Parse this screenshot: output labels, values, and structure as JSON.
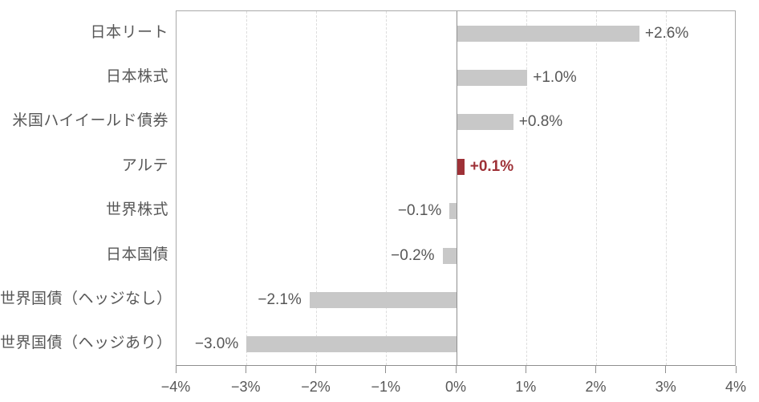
{
  "chart_data": {
    "type": "bar",
    "orientation": "horizontal",
    "title": "",
    "categories": [
      "日本リート",
      "日本株式",
      "米国ハイイールド債券",
      "アルテ",
      "世界株式",
      "日本国債",
      "世界国債（ヘッジなし）",
      "世界国債（ヘッジあり）"
    ],
    "values": [
      2.6,
      1.0,
      0.8,
      0.1,
      -0.1,
      -0.2,
      -2.1,
      -3.0
    ],
    "value_labels": [
      "+2.6%",
      "+1.0%",
      "+0.8%",
      "+0.1%",
      "−0.1%",
      "−0.2%",
      "−2.1%",
      "−3.0%"
    ],
    "highlight_index": 3,
    "highlight_category": "アルテ",
    "xlabel": "",
    "ylabel": "",
    "xlim": [
      -4,
      4
    ],
    "x_ticks": [
      -4,
      -3,
      -2,
      -1,
      0,
      1,
      2,
      3,
      4
    ],
    "x_tick_labels": [
      "−4%",
      "−3%",
      "−2%",
      "−1%",
      "0%",
      "1%",
      "2%",
      "3%",
      "4%"
    ],
    "legend": "none",
    "grid": "vertical dashed gridlines every 1%, solid zero line",
    "colors": {
      "bar": "#c8c8c8",
      "highlight_bar": "#9e3137",
      "highlight_text": "#9e3137",
      "text": "#575757",
      "gridline": "#dddddd",
      "plot_border": "#a9a9a9",
      "axis_line": "#8f8f8f",
      "background": "#ffffff"
    }
  }
}
